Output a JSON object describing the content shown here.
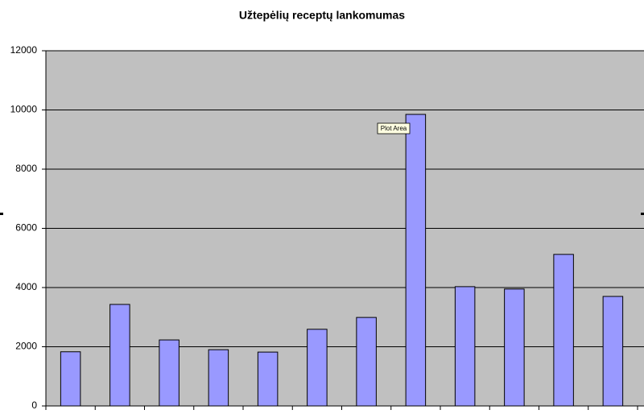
{
  "chart_data": {
    "type": "bar",
    "title": "Užtepėlių receptų lankomumas",
    "categories": [
      null,
      null,
      null,
      null,
      null,
      null,
      null,
      null,
      null,
      null,
      null,
      null
    ],
    "values": [
      1830,
      3430,
      2230,
      1900,
      1820,
      2590,
      2990,
      9850,
      4030,
      3950,
      5120,
      3700
    ],
    "color": "#9999ff",
    "ylim": [
      0,
      12000
    ],
    "yticks": [
      0,
      2000,
      4000,
      6000,
      8000,
      10000,
      12000
    ],
    "grid": true,
    "annotation": "Plot Area"
  }
}
